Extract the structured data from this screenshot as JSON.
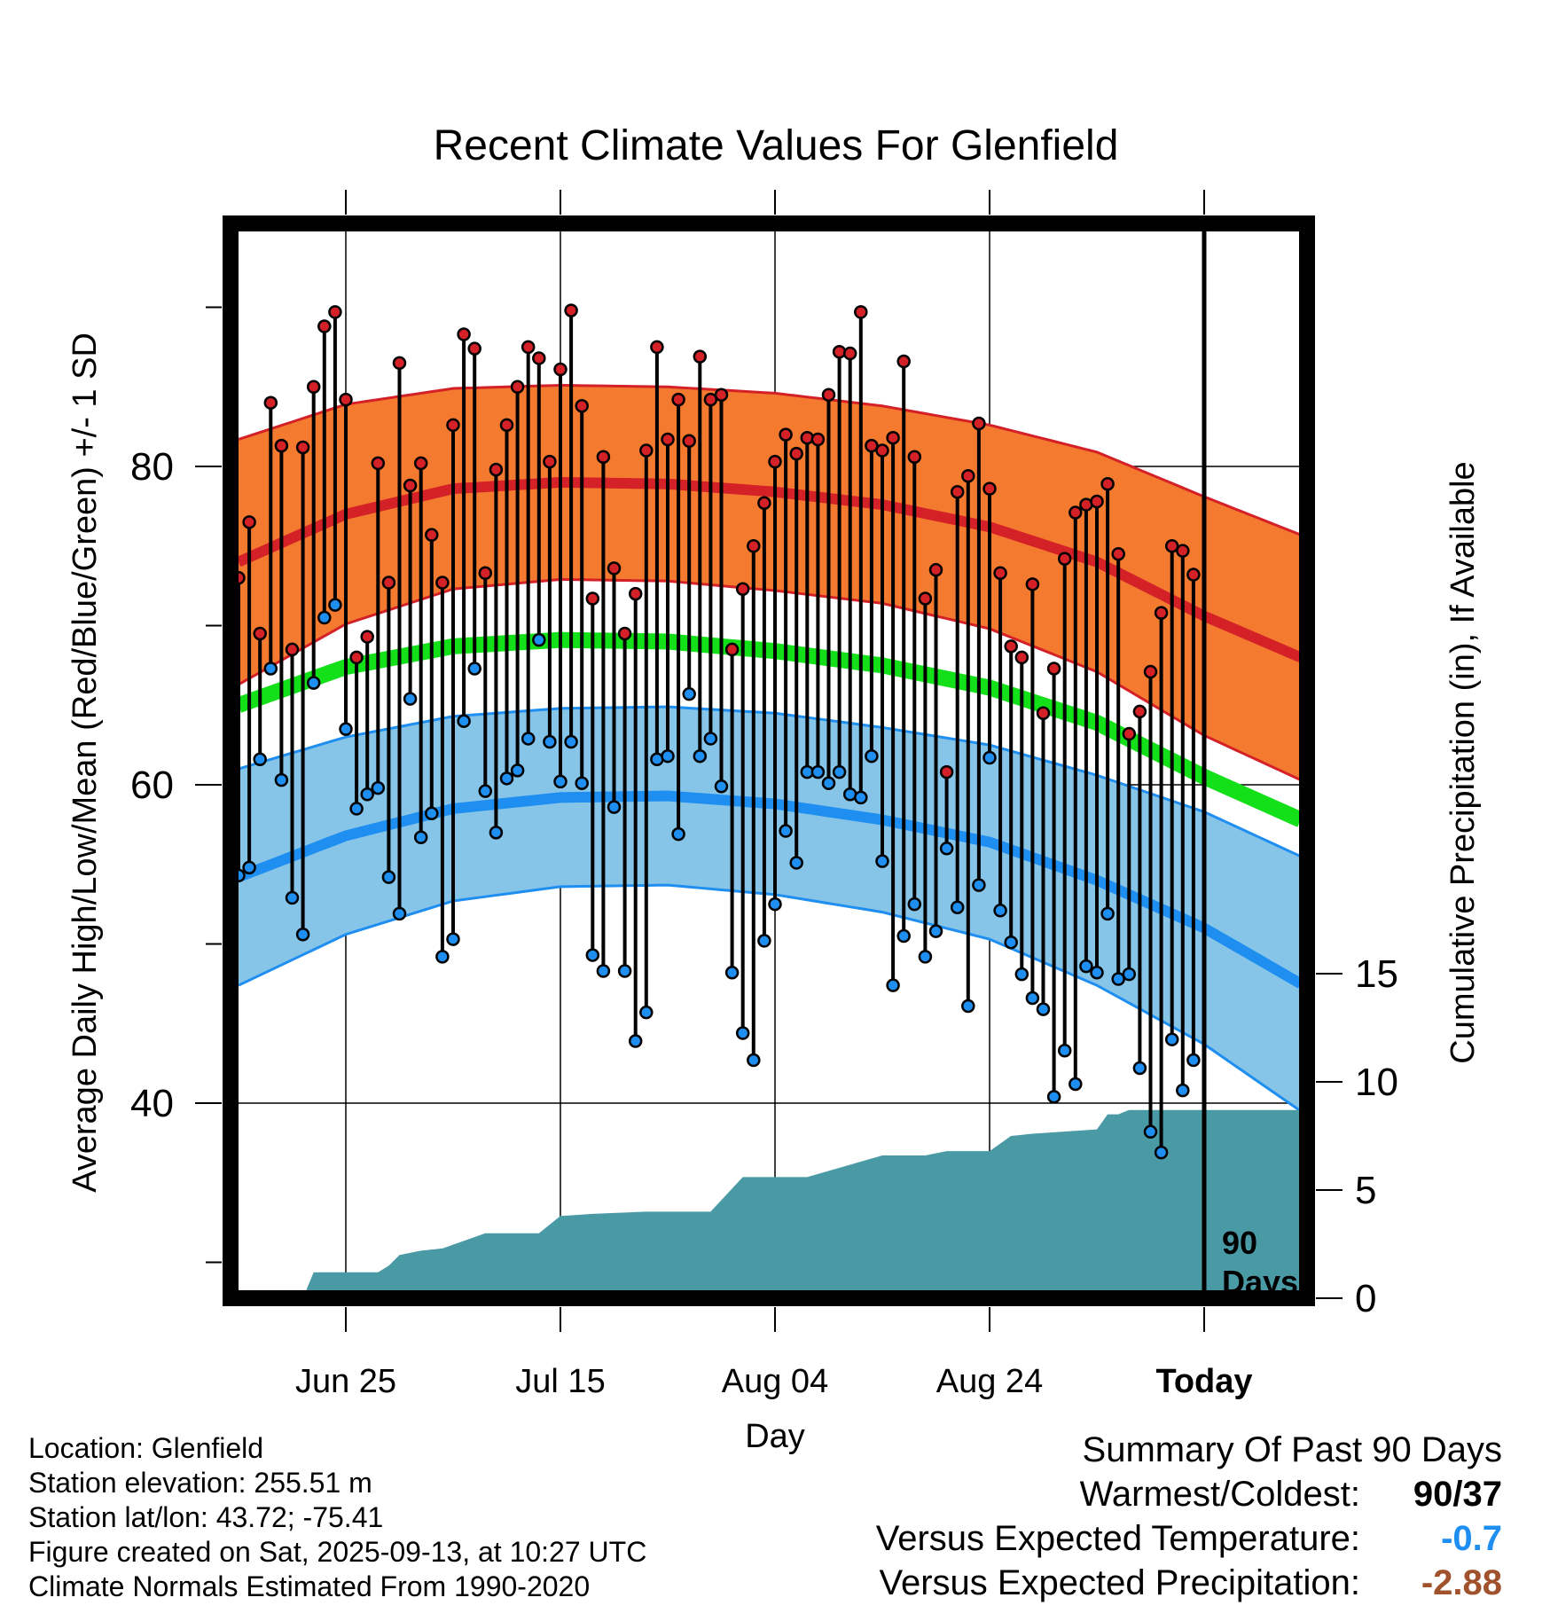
{
  "title": "Recent Climate Values For Glenfield",
  "y_axis_left_label": "Average Daily High/Low/Mean (Red/Blue/Green) +/- 1 SD",
  "y_axis_right_label": "Cumulative Precipitation (in), If Available",
  "x_axis_label": "Day",
  "today_marker_label_line1": "90",
  "today_marker_label_line2": "Days",
  "footer": {
    "location": "Location: Glenfield",
    "elevation": "Station elevation: 255.51 m",
    "latlon": "Station lat/lon: 43.72; -75.41",
    "created": "Figure created on Sat, 2025-09-13, at 10:27 UTC",
    "normals": "Climate Normals Estimated From 1990-2020"
  },
  "summary": {
    "title": "Summary Of Past 90 Days",
    "warm_cold_label": "Warmest/Coldest:",
    "warm_cold_value": "90/37",
    "temp_label": "Versus Expected Temperature:",
    "temp_value": "-0.7",
    "precip_label": "Versus Expected Precipitation:",
    "precip_value": "-2.88"
  },
  "colors": {
    "high_band": "#f47a30",
    "high_line": "#d42027",
    "mean_line": "#14e01a",
    "low_band": "#86c4e8",
    "low_line": "#1e8ef0",
    "precip_fill": "#4a9aa5",
    "high_dot": "#d42027",
    "low_dot": "#1e8ef0",
    "summary_cold": "#1e8ef0",
    "summary_dry": "#a0522d"
  },
  "chart_data": {
    "type": "line",
    "x_days_range": [
      -90,
      9
    ],
    "x_ticks": [
      {
        "day": -80,
        "label": "Jun 25"
      },
      {
        "day": -60,
        "label": "Jul 15"
      },
      {
        "day": -40,
        "label": "Aug 04"
      },
      {
        "day": -20,
        "label": "Aug 24"
      },
      {
        "day": 0,
        "label": "Today"
      }
    ],
    "y_left_range": [
      27,
      95
    ],
    "y_left_ticks": [
      40,
      60,
      80
    ],
    "y_right_range": [
      0,
      50
    ],
    "y_right_ticks": [
      0,
      5,
      10,
      15
    ],
    "normals": {
      "x": [
        -90,
        -80,
        -70,
        -60,
        -50,
        -40,
        -30,
        -20,
        -10,
        0,
        9
      ],
      "high_mean": [
        74,
        77,
        78.6,
        79,
        78.9,
        78.4,
        77.6,
        76.2,
        74,
        70.6,
        68
      ],
      "high_sd": [
        7.7,
        6.9,
        6.3,
        6.1,
        6.1,
        6.2,
        6.2,
        6.4,
        6.9,
        7.5,
        7.7
      ],
      "mean": [
        65,
        67.4,
        68.7,
        69.1,
        69.0,
        68.4,
        67.5,
        66.1,
        63.9,
        60.5,
        57.8
      ],
      "low_mean": [
        54.2,
        56.8,
        58.5,
        59.2,
        59.3,
        58.8,
        57.8,
        56.4,
        54,
        51,
        47.5
      ],
      "low_sd": [
        6.8,
        6.2,
        5.8,
        5.6,
        5.6,
        5.7,
        5.8,
        6.1,
        6.6,
        7.3,
        8.0
      ]
    },
    "daily_days": [
      -90,
      -89,
      -88,
      -87,
      -86,
      -85,
      -84,
      -83,
      -82,
      -81,
      -80,
      -79,
      -78,
      -77,
      -76,
      -75,
      -74,
      -73,
      -72,
      -71,
      -70,
      -69,
      -68,
      -67,
      -66,
      -65,
      -64,
      -63,
      -62,
      -61,
      -60,
      -59,
      -58,
      -57,
      -56,
      -55,
      -54,
      -53,
      -52,
      -51,
      -50,
      -49,
      -48,
      -47,
      -46,
      -45,
      -44,
      -43,
      -42,
      -41,
      -40,
      -39,
      -38,
      -37,
      -36,
      -35,
      -34,
      -33,
      -32,
      -31,
      -30,
      -29,
      -28,
      -27,
      -26,
      -25,
      -24,
      -23,
      -22,
      -21,
      -20,
      -19,
      -18,
      -17,
      -16,
      -15,
      -14,
      -13,
      -12,
      -11,
      -10,
      -9,
      -8,
      -7,
      -6,
      -5,
      -4,
      -3,
      -2,
      -1
    ],
    "daily_high": [
      73,
      76.5,
      69.5,
      84,
      81.3,
      68.5,
      81.2,
      85,
      88.8,
      89.7,
      84.2,
      68,
      69.3,
      80.2,
      72.7,
      86.5,
      78.8,
      80.2,
      75.7,
      72.7,
      82.6,
      88.3,
      87.4,
      73.3,
      79.8,
      82.6,
      85,
      87.5,
      86.8,
      80.3,
      86.1,
      89.8,
      83.8,
      71.7,
      80.6,
      73.6,
      69.5,
      72,
      81,
      87.5,
      81.7,
      84.2,
      81.6,
      86.9,
      84.2,
      84.5,
      68.5,
      72.3,
      75,
      77.7,
      80.3,
      82,
      80.8,
      81.8,
      81.7,
      84.5,
      87.2,
      87.1,
      89.7,
      81.3,
      81,
      81.8,
      86.6,
      80.6,
      71.7,
      73.5,
      60.8,
      78.4,
      79.4,
      82.7,
      78.6,
      73.3,
      68.7,
      68,
      72.6,
      64.5,
      67.3,
      74.2,
      77.1,
      77.6,
      77.8,
      78.9,
      74.5,
      63.2,
      64.6,
      67.1,
      70.8,
      75,
      74.7,
      73.2
    ],
    "daily_low": [
      54.3,
      54.8,
      61.6,
      67.3,
      60.3,
      52.9,
      50.6,
      66.4,
      70.5,
      71.3,
      63.5,
      58.5,
      59.4,
      59.8,
      54.2,
      51.9,
      65.4,
      56.7,
      58.2,
      49.2,
      50.3,
      64,
      67.3,
      59.6,
      57,
      60.4,
      60.9,
      62.9,
      69.1,
      62.7,
      60.2,
      62.7,
      60.1,
      49.3,
      48.3,
      58.6,
      48.3,
      43.9,
      45.7,
      61.6,
      61.8,
      56.9,
      65.7,
      61.8,
      62.9,
      59.9,
      48.2,
      44.4,
      42.7,
      50.2,
      52.5,
      57.1,
      55.1,
      60.8,
      60.8,
      60.1,
      60.8,
      59.4,
      59.2,
      61.8,
      55.2,
      47.4,
      50.5,
      52.5,
      49.2,
      50.8,
      56,
      52.3,
      46.1,
      53.7,
      61.7,
      52.1,
      50.1,
      48.1,
      46.6,
      45.9,
      40.4,
      43.3,
      41.2,
      48.6,
      48.2,
      51.9,
      47.8,
      48.1,
      42.2,
      38.2,
      36.9,
      44,
      40.8,
      42.7
    ],
    "precip_days": [
      -90,
      -84,
      -83,
      -77,
      -76,
      -75,
      -73,
      -71,
      -67,
      -62,
      -60,
      -57,
      -52,
      -46,
      -43,
      -39,
      -37,
      -30,
      -26,
      -24,
      -20,
      -18,
      -16,
      -10,
      -9,
      -8,
      -7,
      -6
    ],
    "precip_cum": [
      0,
      0,
      1.2,
      1.2,
      1.5,
      2,
      2.2,
      2.3,
      3,
      3,
      3.8,
      3.9,
      4,
      4,
      5.6,
      5.6,
      5.6,
      6.6,
      6.6,
      6.8,
      6.8,
      7.5,
      7.6,
      7.8,
      8.5,
      8.5,
      8.7,
      8.7
    ]
  }
}
